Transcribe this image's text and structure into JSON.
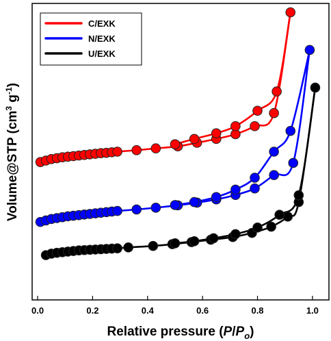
{
  "chart_data": {
    "type": "scatter",
    "xlabel": "Relative pressure (P/Po)",
    "xlabel_parts": {
      "prefix": "Relative pressure (",
      "p": "P",
      "slash": "/",
      "po": "P",
      "sub": "o",
      "suffix": ")"
    },
    "ylabel": "Volume@STP (cm3 g-1)",
    "ylabel_parts": {
      "prefix": "Volume@STP (cm",
      "sup1": "3",
      "mid": " g",
      "sup2": "-1",
      "suffix": ")"
    },
    "xlim": [
      -0.02,
      1.06
    ],
    "xticks": [
      "0.0",
      "0.2",
      "0.4",
      "0.6",
      "0.8",
      "1.0"
    ],
    "xtick_values": [
      0.0,
      0.2,
      0.4,
      0.6,
      0.8,
      1.0
    ],
    "ylim": [
      0,
      100
    ],
    "y_ticks_labeled": false,
    "grid": false,
    "legend_position": "top-left",
    "series": [
      {
        "name": "C/EXK",
        "color": "#ff0000",
        "adsorption": [
          [
            0.01,
            46.5
          ],
          [
            0.03,
            47.0
          ],
          [
            0.05,
            47.5
          ],
          [
            0.07,
            47.8
          ],
          [
            0.09,
            48.1
          ],
          [
            0.11,
            48.3
          ],
          [
            0.13,
            48.5
          ],
          [
            0.15,
            48.7
          ],
          [
            0.17,
            48.9
          ],
          [
            0.19,
            49.1
          ],
          [
            0.21,
            49.3
          ],
          [
            0.23,
            49.5
          ],
          [
            0.25,
            49.6
          ],
          [
            0.27,
            49.8
          ],
          [
            0.29,
            50.0
          ],
          [
            0.36,
            50.5
          ],
          [
            0.43,
            51.1
          ],
          [
            0.51,
            51.8
          ],
          [
            0.58,
            53.0
          ],
          [
            0.65,
            54.3
          ],
          [
            0.72,
            55.9
          ],
          [
            0.79,
            58.6
          ],
          [
            0.86,
            63.0
          ],
          [
            0.92,
            97.0
          ]
        ],
        "desorption": [
          [
            0.92,
            97.0
          ],
          [
            0.87,
            70.3
          ],
          [
            0.8,
            63.8
          ],
          [
            0.72,
            58.6
          ],
          [
            0.65,
            56.2
          ],
          [
            0.57,
            54.3
          ],
          [
            0.5,
            52.5
          ]
        ]
      },
      {
        "name": "N/EXK",
        "color": "#0000ff",
        "adsorption": [
          [
            0.01,
            26.3
          ],
          [
            0.03,
            26.8
          ],
          [
            0.05,
            27.3
          ],
          [
            0.07,
            27.6
          ],
          [
            0.09,
            27.9
          ],
          [
            0.11,
            28.2
          ],
          [
            0.13,
            28.4
          ],
          [
            0.15,
            28.6
          ],
          [
            0.17,
            28.8
          ],
          [
            0.19,
            29.0
          ],
          [
            0.21,
            29.2
          ],
          [
            0.23,
            29.4
          ],
          [
            0.25,
            29.6
          ],
          [
            0.27,
            29.8
          ],
          [
            0.29,
            30.0
          ],
          [
            0.36,
            30.5
          ],
          [
            0.43,
            31.1
          ],
          [
            0.51,
            31.9
          ],
          [
            0.58,
            32.8
          ],
          [
            0.65,
            33.9
          ],
          [
            0.72,
            35.4
          ],
          [
            0.79,
            37.6
          ],
          [
            0.86,
            42.1
          ],
          [
            0.93,
            46.2
          ],
          [
            0.99,
            84.3
          ]
        ],
        "desorption": [
          [
            0.99,
            84.3
          ],
          [
            0.92,
            57.0
          ],
          [
            0.86,
            50.0
          ],
          [
            0.79,
            41.2
          ],
          [
            0.72,
            37.2
          ],
          [
            0.65,
            34.7
          ],
          [
            0.57,
            33.0
          ],
          [
            0.5,
            32.0
          ]
        ]
      },
      {
        "name": "U/EXK",
        "color": "#000000",
        "adsorption": [
          [
            0.03,
            15.1
          ],
          [
            0.05,
            15.6
          ],
          [
            0.07,
            15.9
          ],
          [
            0.09,
            16.1
          ],
          [
            0.11,
            16.3
          ],
          [
            0.13,
            16.5
          ],
          [
            0.15,
            16.7
          ],
          [
            0.17,
            16.8
          ],
          [
            0.19,
            16.9
          ],
          [
            0.21,
            17.0
          ],
          [
            0.23,
            17.1
          ],
          [
            0.25,
            17.2
          ],
          [
            0.27,
            17.3
          ],
          [
            0.29,
            17.4
          ],
          [
            0.33,
            17.7
          ],
          [
            0.42,
            18.2
          ],
          [
            0.49,
            18.8
          ],
          [
            0.56,
            19.5
          ],
          [
            0.63,
            20.3
          ],
          [
            0.71,
            21.2
          ],
          [
            0.78,
            22.6
          ],
          [
            0.85,
            24.7
          ],
          [
            0.91,
            28.1
          ],
          [
            0.95,
            33.0
          ],
          [
            1.01,
            71.6
          ]
        ],
        "desorption": [
          [
            1.01,
            71.6
          ],
          [
            0.95,
            35.3
          ],
          [
            0.88,
            28.7
          ],
          [
            0.8,
            24.4
          ],
          [
            0.72,
            22.2
          ],
          [
            0.64,
            20.8
          ],
          [
            0.57,
            19.8
          ],
          [
            0.5,
            19.1
          ]
        ]
      }
    ]
  }
}
